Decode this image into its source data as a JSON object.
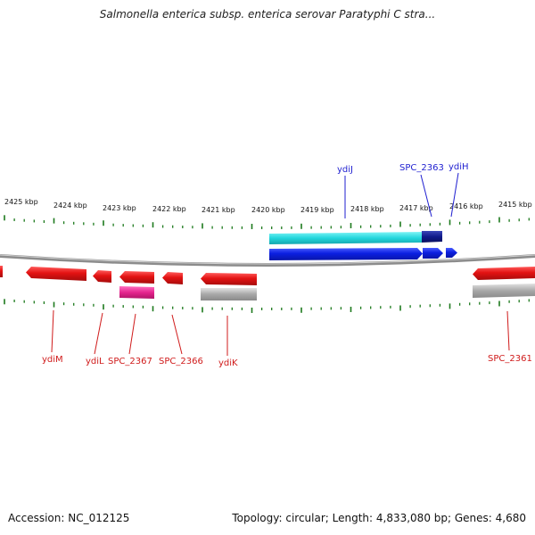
{
  "title": "Salmonella enterica subsp. enterica serovar Paratyphi C stra...",
  "footer": {
    "accession": "Accession: NC_012125",
    "summary": "Topology: circular; Length: 4,833,080 bp; Genes: 4,680"
  },
  "scale_labels": [
    "2425 kbp",
    "2424 kbp",
    "2423 kbp",
    "2422 kbp",
    "2421 kbp",
    "2420 kbp",
    "2419 kbp",
    "2418 kbp",
    "2417 kbp",
    "2416 kbp",
    "2415 kbp"
  ],
  "gene_labels_top": [
    "ydiJ",
    "SPC_2363",
    "ydiH"
  ],
  "gene_labels_bottom": [
    "ydiM",
    "ydiL",
    "SPC_2367",
    "SPC_2366",
    "ydiK",
    "SPC_2361"
  ],
  "colors": {
    "forward_gene": "#0b1fe0",
    "reverse_gene": "#e31212",
    "cog_cyan": "#22d6dc",
    "cog_navy": "#101a8a",
    "cog_pink": "#e5248e",
    "cog_grey": "#a8a8a8",
    "ticks": "#1d7a1d",
    "backbone": "#888888"
  }
}
